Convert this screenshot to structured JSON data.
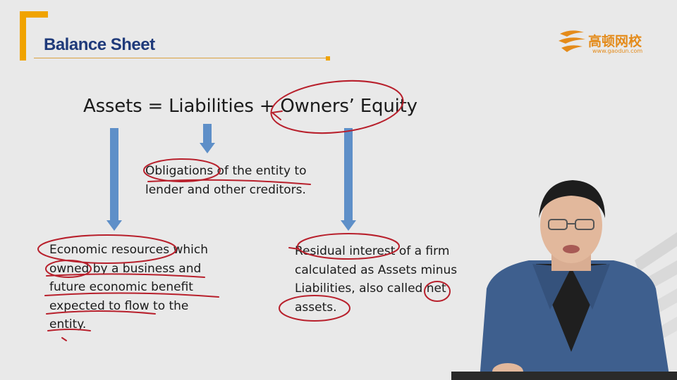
{
  "slide": {
    "title": "Balance Sheet",
    "logo": {
      "name": "高顿网校",
      "url": "www.gaodun.com",
      "icon": "gaodun-logo-icon"
    },
    "equation": "Assets = Liabilities + Owners’ Equity",
    "liabilities_desc": [
      "Obligations of the entity to",
      "lender and other creditors."
    ],
    "assets_desc": [
      "Economic resources which",
      "owned by a business and",
      "future economic benefit",
      "expected to flow to the",
      "entity."
    ],
    "equity_desc": [
      "Residual interest of a firm",
      "calculated as Assets minus",
      "Liabilities, also called net",
      "assets."
    ]
  },
  "colors": {
    "background": "#e9e9e9",
    "accent_orange": "#f0a300",
    "title_blue": "#1f3a7a",
    "arrow_blue": "#5e8fc8",
    "annotation_red": "#b8202c"
  }
}
